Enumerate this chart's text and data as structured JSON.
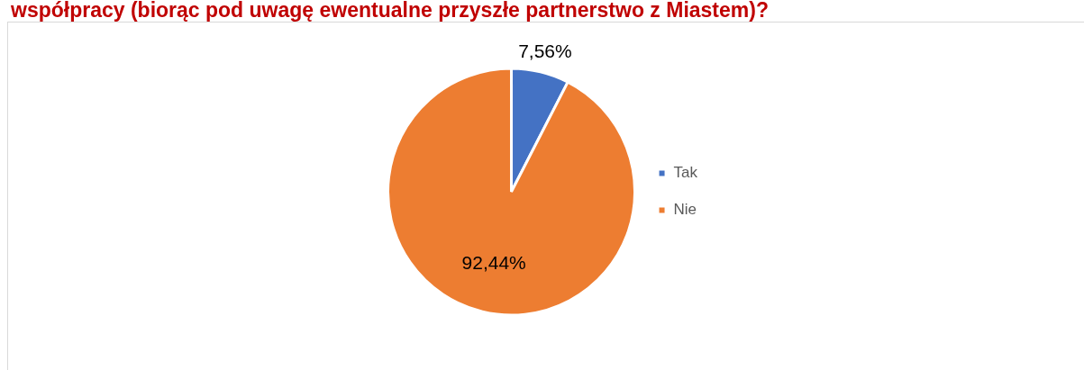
{
  "chart_data": {
    "type": "pie",
    "title": "współpracy (biorąc pod uwagę ewentualne przyszłe partnerstwo z Miastem)?",
    "categories": [
      "Tak",
      "Nie"
    ],
    "values": [
      7.56,
      92.44
    ],
    "colors": [
      "#4472c4",
      "#ed7d31"
    ],
    "value_labels": [
      "7,56%",
      "92,44%"
    ],
    "legend": "right"
  }
}
